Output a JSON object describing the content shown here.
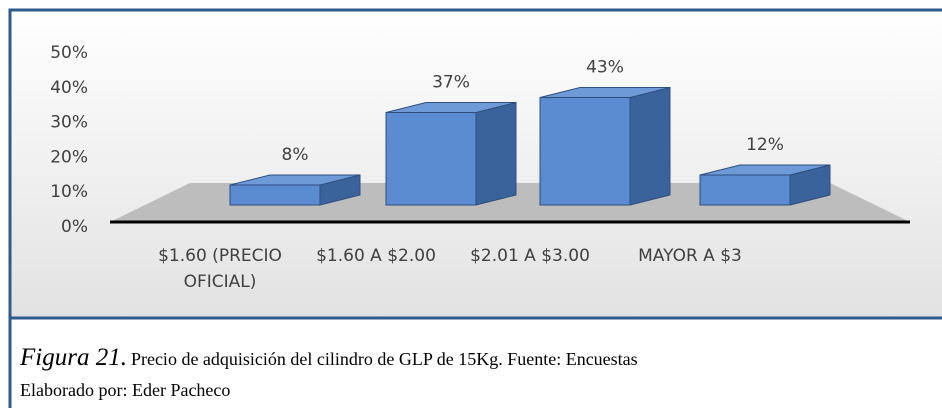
{
  "chart_data": {
    "type": "bar3d",
    "categories": [
      "$1.60 (PRECIO OFICIAL)",
      "$1.60 A $2.00",
      "$2.01 A $3.00",
      "MAYOR A $3"
    ],
    "values": [
      8,
      37,
      43,
      12
    ],
    "value_labels": [
      "8%",
      "37%",
      "43%",
      "12%"
    ],
    "color": "#5b8bd0",
    "ylim": [
      0,
      50
    ],
    "yticks": [
      {
        "value": 0,
        "label": "0%"
      },
      {
        "value": 10,
        "label": "10%"
      },
      {
        "value": 20,
        "label": "20%"
      },
      {
        "value": 30,
        "label": "30%"
      },
      {
        "value": 40,
        "label": "40%"
      },
      {
        "value": 50,
        "label": "50%"
      }
    ]
  },
  "caption": {
    "figure": "Figura 21.",
    "text": "Precio de adquisición del cilindro de GLP de 15Kg. Fuente: Encuestas",
    "author": "Elaborado por: Eder Pacheco"
  }
}
